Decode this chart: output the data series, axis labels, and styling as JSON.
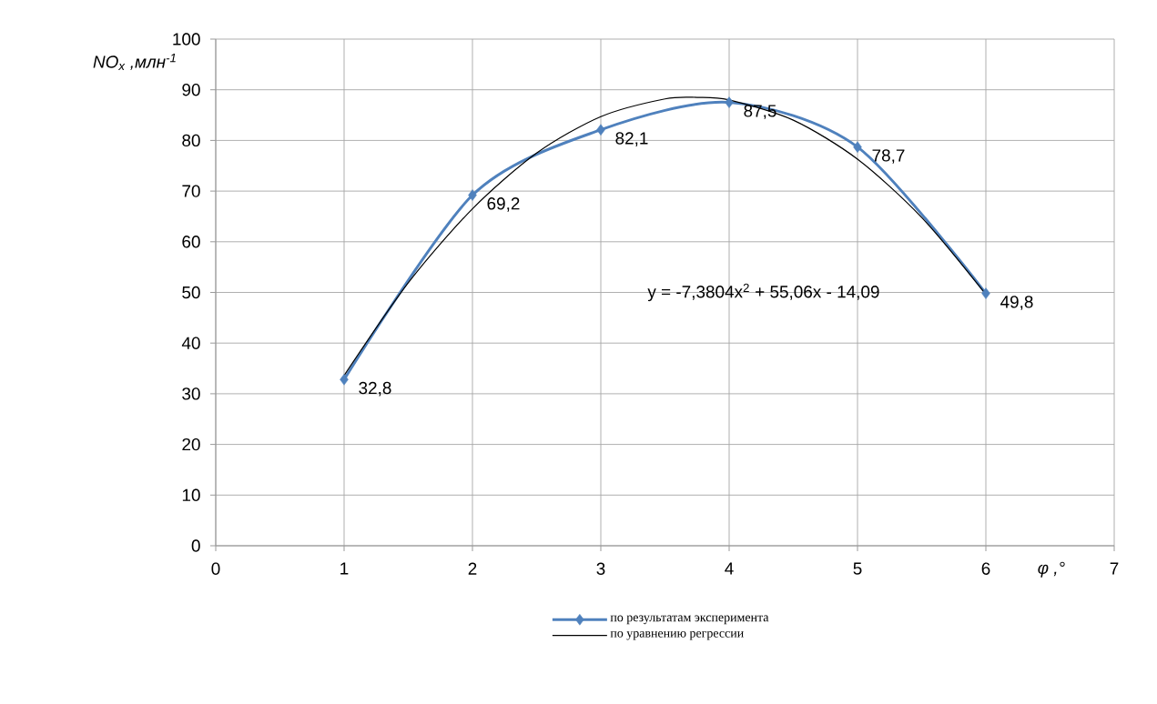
{
  "chart_data": {
    "type": "line",
    "xlabel": "φ ,°",
    "ylabel": "NO$_{x}$ ,млн$^{-1}$",
    "xlim": [
      0,
      7
    ],
    "xticks": [
      0,
      1,
      2,
      3,
      4,
      5,
      6,
      7
    ],
    "ylim": [
      0,
      100
    ],
    "yticks": [
      0,
      10,
      20,
      30,
      40,
      50,
      60,
      70,
      80,
      90,
      100
    ],
    "grid": true,
    "legend": "bottom",
    "annotations": [
      "y = -7,3804x$^{2}$ + 55,06x - 14,09"
    ],
    "series": [
      {
        "name": "по результатам эксперимента",
        "color": "#4f81bd",
        "marker": "diamond",
        "x": [
          1,
          2,
          3,
          4,
          5,
          6
        ],
        "values": [
          32.8,
          69.2,
          82.1,
          87.5,
          78.7,
          49.8
        ],
        "value_labels": [
          "32,8",
          "69,2",
          "82,1",
          "87,5",
          "78,7",
          "49,8"
        ]
      },
      {
        "name": "по уравнению регрессии",
        "color": "#000000",
        "marker": "none",
        "x": [
          1,
          1.5,
          2,
          2.5,
          3,
          3.5,
          3.75,
          4,
          4.5,
          5,
          5.5,
          6
        ],
        "values": [
          33.6,
          51.9,
          66.5,
          77.5,
          84.7,
          88.2,
          88.5,
          88.0,
          84.0,
          76.3,
          64.8,
          49.6
        ]
      }
    ]
  }
}
